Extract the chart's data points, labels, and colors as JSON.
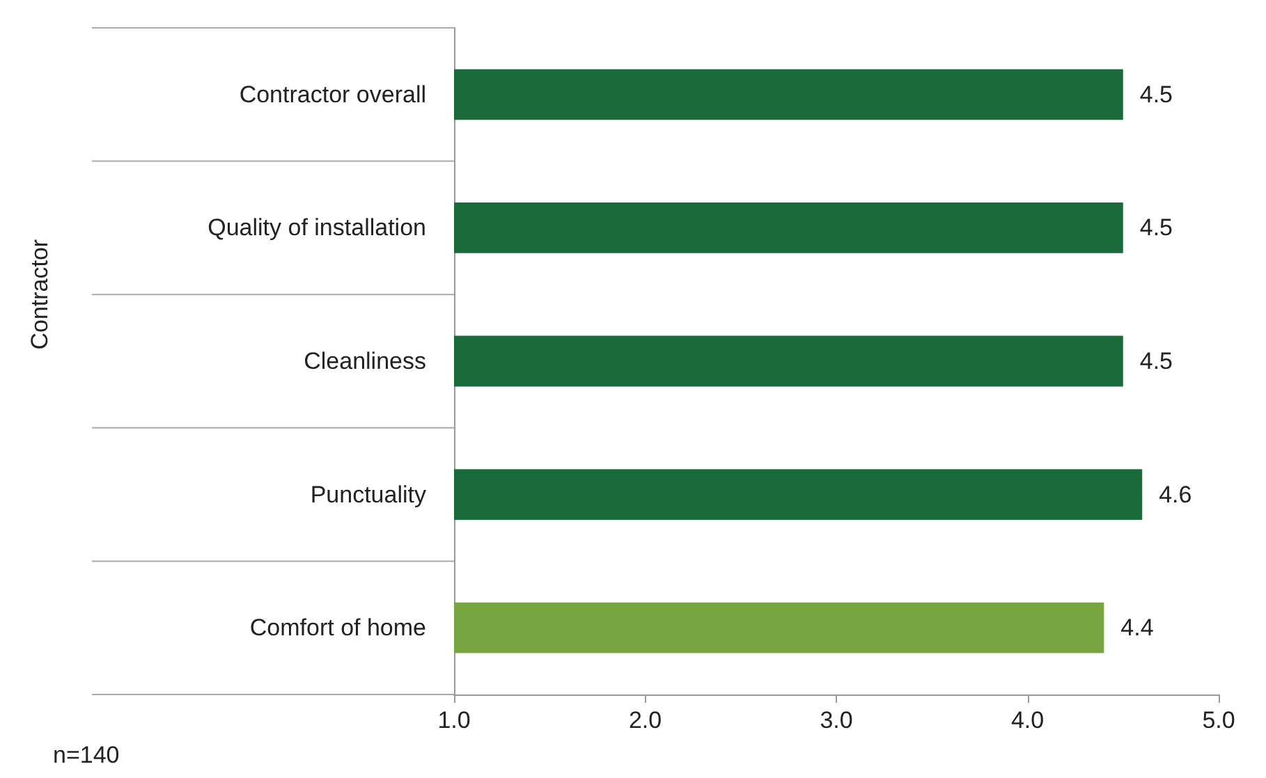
{
  "chart_data": {
    "type": "bar",
    "orientation": "horizontal",
    "categories": [
      "Contractor overall",
      "Quality of installation",
      "Cleanliness",
      "Punctuality",
      "Comfort of home"
    ],
    "values": [
      4.5,
      4.5,
      4.5,
      4.6,
      4.4
    ],
    "colors": [
      "#1b6b3a",
      "#1b6b3a",
      "#1b6b3a",
      "#1b6b3a",
      "#77a540"
    ],
    "xlim": [
      1,
      5
    ],
    "xticks": [
      {
        "value": 1,
        "label": "1.0"
      },
      {
        "value": 2,
        "label": "2.0"
      },
      {
        "value": 3,
        "label": "3.0"
      },
      {
        "value": 4,
        "label": "4.0"
      },
      {
        "value": 5,
        "label": "5.0"
      }
    ],
    "data_labels": true,
    "grid": false,
    "annotations": [
      "Contractor",
      "n=140"
    ]
  }
}
